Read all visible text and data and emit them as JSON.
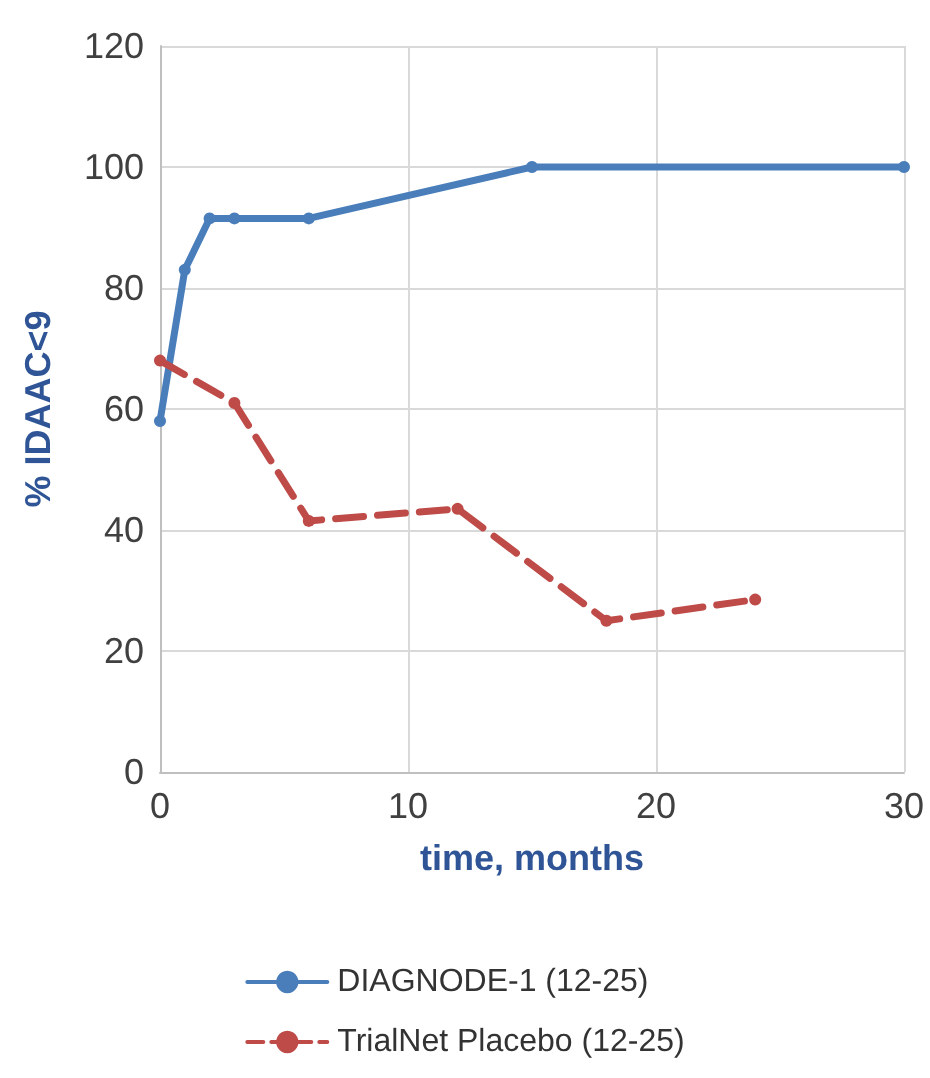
{
  "chart_data": {
    "type": "line",
    "xlabel": "time, months",
    "ylabel": "% IDAAC<9",
    "xlim": [
      0,
      30
    ],
    "xticks": [
      0,
      10,
      20,
      30
    ],
    "ylim": [
      0,
      120
    ],
    "yticks": [
      0,
      20,
      40,
      60,
      80,
      100,
      120
    ],
    "grid": true,
    "legend": "bottom",
    "marker": "circle",
    "series": [
      {
        "name": "DIAGNODE-1 (12-25)",
        "color": "#4a7ebb",
        "line_style": "solid",
        "x": [
          0,
          1,
          2,
          3,
          6,
          15,
          30
        ],
        "values": [
          58,
          83,
          91.5,
          91.5,
          91.5,
          100,
          100
        ]
      },
      {
        "name": "TrialNet Placebo (12-25)",
        "color": "#be4b48",
        "line_style": "dashed",
        "x": [
          0,
          3,
          6,
          12,
          18,
          24
        ],
        "values": [
          68,
          61,
          41.5,
          43.5,
          25,
          28.5
        ]
      }
    ]
  }
}
